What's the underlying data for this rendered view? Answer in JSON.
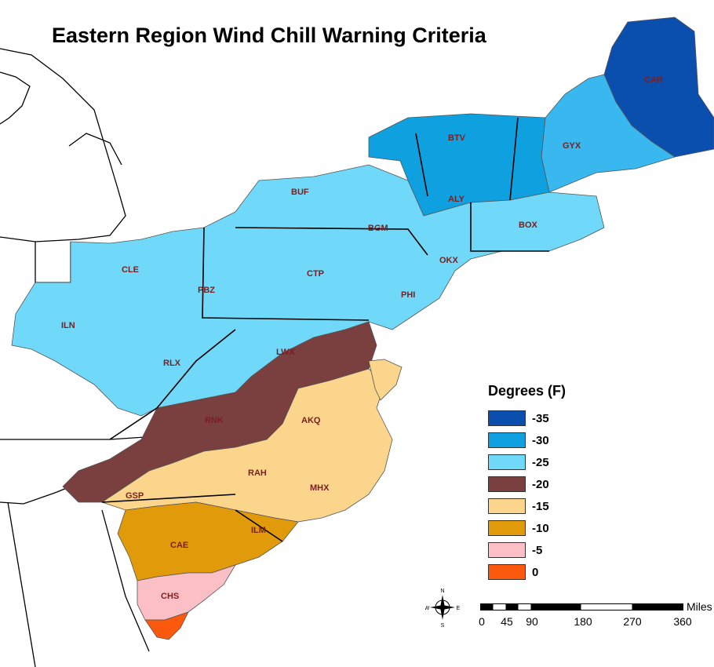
{
  "title": "Eastern Region Wind Chill Warning Criteria",
  "legend": {
    "title": "Degrees (F)",
    "items": [
      {
        "label": "-35",
        "color": "#0a4fad"
      },
      {
        "label": "-30",
        "color": "#0fa0e0"
      },
      {
        "label": "-25",
        "color": "#70d8f8"
      },
      {
        "label": "-20",
        "color": "#7a3f3f"
      },
      {
        "label": "-15",
        "color": "#fcd58c"
      },
      {
        "label": "-10",
        "color": "#e09a0a"
      },
      {
        "label": "-5",
        "color": "#fdbfc6"
      },
      {
        "label": "0",
        "color": "#fb5a0e"
      }
    ]
  },
  "offices": [
    {
      "code": "CAR",
      "value": "-35"
    },
    {
      "code": "BTV",
      "value": "-30"
    },
    {
      "code": "GYX",
      "value": "-30"
    },
    {
      "code": "ALY",
      "value": "-30"
    },
    {
      "code": "BUF",
      "value": "-25"
    },
    {
      "code": "BGM",
      "value": "-25"
    },
    {
      "code": "BOX",
      "value": "-25"
    },
    {
      "code": "OKX",
      "value": "-25"
    },
    {
      "code": "CLE",
      "value": "-25"
    },
    {
      "code": "CTP",
      "value": "-25"
    },
    {
      "code": "PBZ",
      "value": "-25"
    },
    {
      "code": "PHI",
      "value": "-25"
    },
    {
      "code": "ILN",
      "value": "-25"
    },
    {
      "code": "RLX",
      "value": "-25"
    },
    {
      "code": "LWX",
      "value": "-25"
    },
    {
      "code": "RNK",
      "value": "-20"
    },
    {
      "code": "AKQ",
      "value": "-15"
    },
    {
      "code": "RAH",
      "value": "-15"
    },
    {
      "code": "MHX",
      "value": "-15"
    },
    {
      "code": "GSP",
      "value": "-20"
    },
    {
      "code": "CAE",
      "value": "-10"
    },
    {
      "code": "ILM",
      "value": "-10"
    },
    {
      "code": "CHS",
      "value": "-5"
    }
  ],
  "scale": {
    "unit": "Miles",
    "ticks": [
      "0",
      "45",
      "90",
      "180",
      "270",
      "360"
    ]
  },
  "compass": {
    "n": "N",
    "s": "S",
    "e": "E",
    "w": "W"
  },
  "icons": {
    "compass": "compass-rose-icon"
  }
}
